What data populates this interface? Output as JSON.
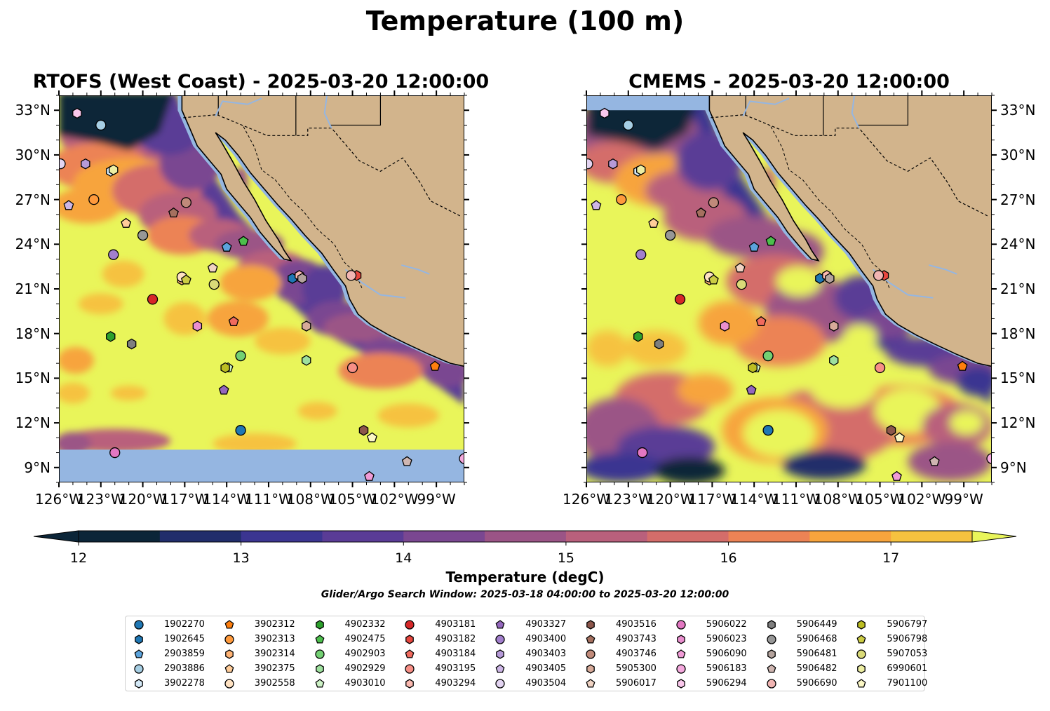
{
  "figure": {
    "title": "Temperature (100 m)",
    "window_text": "Glider/Argo Search Window: 2025-03-18 04:00:00 to 2025-03-20 12:00:00"
  },
  "panels": [
    {
      "title": "RTOFS (West Coast) - 2025-03-20 12:00:00"
    },
    {
      "title": "CMEMS - 2025-03-20 12:00:00"
    }
  ],
  "colorbar": {
    "label": "Temperature (degC)",
    "ticks": [
      "12",
      "13",
      "14",
      "15",
      "16",
      "17"
    ],
    "colors": [
      "#0b2538",
      "#212d6b",
      "#3b3591",
      "#5a3c96",
      "#7a4791",
      "#9b5486",
      "#b9607c",
      "#d46d6a",
      "#ec8355",
      "#f7a43d",
      "#f6c23f",
      "#e9f55a"
    ]
  },
  "chart_data": {
    "type": "heatmap",
    "title": "Temperature (100 m)",
    "variable": "Temperature (degC)",
    "vmin": 12,
    "vmax": 17.5,
    "extend": "both",
    "xlim": [
      -126,
      -97
    ],
    "ylim": [
      8,
      34
    ],
    "x_ticks": [
      "126°W",
      "123°W",
      "120°W",
      "117°W",
      "114°W",
      "111°W",
      "108°W",
      "105°W",
      "102°W",
      "99°W"
    ],
    "y_ticks": [
      "9°N",
      "12°N",
      "15°N",
      "18°N",
      "21°N",
      "24°N",
      "27°N",
      "30°N",
      "33°N"
    ],
    "x_tick_values": [
      -126,
      -123,
      -120,
      -117,
      -114,
      -111,
      -108,
      -105,
      -102,
      -99
    ],
    "y_tick_values": [
      9,
      12,
      15,
      18,
      21,
      24,
      27,
      30,
      33
    ],
    "panels": [
      "RTOFS (West Coast) - 2025-03-20 12:00:00",
      "CMEMS - 2025-03-20 12:00:00"
    ],
    "platforms": [
      {
        "id": "1902270",
        "marker": "o",
        "color": "#1f77b4",
        "lon": -113.0,
        "lat": 11.5
      },
      {
        "id": "1902645",
        "marker": "h",
        "color": "#1f77b4",
        "lon": -109.3,
        "lat": 21.7
      },
      {
        "id": "2903859",
        "marker": "p",
        "color": "#5ba3dc",
        "lon": -114.0,
        "lat": 23.8
      },
      {
        "id": "2903886",
        "marker": "o",
        "color": "#a6cee3",
        "lon": -123.0,
        "lat": 32.0
      },
      {
        "id": "3902278",
        "marker": "h",
        "color": "#d4e9f7",
        "lon": -122.3,
        "lat": 28.9
      },
      {
        "id": "3902312",
        "marker": "p",
        "color": "#ff7f0e",
        "lon": -99.1,
        "lat": 15.8
      },
      {
        "id": "3902313",
        "marker": "o",
        "color": "#ff9a3c",
        "lon": -123.5,
        "lat": 27.0
      },
      {
        "id": "3902314",
        "marker": "h",
        "color": "#ffb374",
        "lon": -117.2,
        "lat": 21.6
      },
      {
        "id": "3902375",
        "marker": "p",
        "color": "#ffcc99",
        "lon": -121.2,
        "lat": 25.4
      },
      {
        "id": "3902558",
        "marker": "o",
        "color": "#ffe2c2",
        "lon": -117.2,
        "lat": 21.8
      },
      {
        "id": "4902332",
        "marker": "h",
        "color": "#2ca02c",
        "lon": -122.3,
        "lat": 17.8
      },
      {
        "id": "4902475",
        "marker": "p",
        "color": "#4cbf4c",
        "lon": -112.8,
        "lat": 24.2
      },
      {
        "id": "4902903",
        "marker": "o",
        "color": "#73d073",
        "lon": -113.0,
        "lat": 16.5
      },
      {
        "id": "4902929",
        "marker": "h",
        "color": "#9ee09e",
        "lon": -108.3,
        "lat": 16.2
      },
      {
        "id": "4903010",
        "marker": "p",
        "color": "#cdf2c6",
        "lon": -113.9,
        "lat": 15.7
      },
      {
        "id": "4903181",
        "marker": "o",
        "color": "#d62728",
        "lon": -119.3,
        "lat": 20.3
      },
      {
        "id": "4903182",
        "marker": "h",
        "color": "#e8473f",
        "lon": -104.7,
        "lat": 21.9
      },
      {
        "id": "4903184",
        "marker": "p",
        "color": "#f06a5e",
        "lon": -113.5,
        "lat": 18.8
      },
      {
        "id": "4903195",
        "marker": "o",
        "color": "#f78f86",
        "lon": -105.0,
        "lat": 15.7
      },
      {
        "id": "4903294",
        "marker": "h",
        "color": "#fbb9b0",
        "lon": -108.8,
        "lat": 21.9
      },
      {
        "id": "4903327",
        "marker": "p",
        "color": "#9467bd",
        "lon": -114.2,
        "lat": 14.2
      },
      {
        "id": "4903400",
        "marker": "o",
        "color": "#a27fcc",
        "lon": -122.1,
        "lat": 23.3
      },
      {
        "id": "4903403",
        "marker": "h",
        "color": "#b69ad8",
        "lon": -124.1,
        "lat": 29.4
      },
      {
        "id": "4903405",
        "marker": "p",
        "color": "#cdb6e6",
        "lon": -125.3,
        "lat": 26.6
      },
      {
        "id": "4903504",
        "marker": "o",
        "color": "#e3d4f1",
        "lon": -125.9,
        "lat": 29.4
      },
      {
        "id": "4903516",
        "marker": "h",
        "color": "#8c564b",
        "lon": -104.2,
        "lat": 11.5
      },
      {
        "id": "4903743",
        "marker": "p",
        "color": "#a5705f",
        "lon": -117.8,
        "lat": 26.1
      },
      {
        "id": "4903746",
        "marker": "o",
        "color": "#c08a7a",
        "lon": -116.9,
        "lat": 26.8
      },
      {
        "id": "5905300",
        "marker": "h",
        "color": "#d7aa99",
        "lon": -108.3,
        "lat": 18.5
      },
      {
        "id": "5906017",
        "marker": "p",
        "color": "#f0d3c3",
        "lon": -115.0,
        "lat": 22.4
      },
      {
        "id": "5906022",
        "marker": "o",
        "color": "#e377c2",
        "lon": -122.0,
        "lat": 10.0
      },
      {
        "id": "5906023",
        "marker": "h",
        "color": "#ea8fcf",
        "lon": -116.1,
        "lat": 18.5
      },
      {
        "id": "5906090",
        "marker": "p",
        "color": "#f09bd6",
        "lon": -103.8,
        "lat": 8.4
      },
      {
        "id": "5906183",
        "marker": "o",
        "color": "#f5a9de",
        "lon": -97.0,
        "lat": 9.6
      },
      {
        "id": "5906294",
        "marker": "h",
        "color": "#f9c7eb",
        "lon": -124.7,
        "lat": 32.8
      },
      {
        "id": "5906449",
        "marker": "h",
        "color": "#7f7f7f",
        "lon": -120.8,
        "lat": 17.3
      },
      {
        "id": "5906468",
        "marker": "o",
        "color": "#979797",
        "lon": -120.0,
        "lat": 24.6
      },
      {
        "id": "5906481",
        "marker": "h",
        "color": "#b4a39d",
        "lon": -108.6,
        "lat": 21.7
      },
      {
        "id": "5906482",
        "marker": "p",
        "color": "#cfb6b1",
        "lon": -101.1,
        "lat": 9.4
      },
      {
        "id": "5906690",
        "marker": "o",
        "color": "#f1b5b3",
        "lon": -105.1,
        "lat": 21.9
      },
      {
        "id": "5906797",
        "marker": "h",
        "color": "#bcbd22",
        "lon": -114.1,
        "lat": 15.7
      },
      {
        "id": "5906798",
        "marker": "p",
        "color": "#cccc44",
        "lon": -116.9,
        "lat": 21.6
      },
      {
        "id": "5907053",
        "marker": "o",
        "color": "#dada78",
        "lon": -114.9,
        "lat": 21.3
      },
      {
        "id": "6990601",
        "marker": "h",
        "color": "#edeea3",
        "lon": -122.1,
        "lat": 29.0
      },
      {
        "id": "7901100",
        "marker": "p",
        "color": "#fbf7c5",
        "lon": -103.6,
        "lat": 11.0
      }
    ]
  }
}
